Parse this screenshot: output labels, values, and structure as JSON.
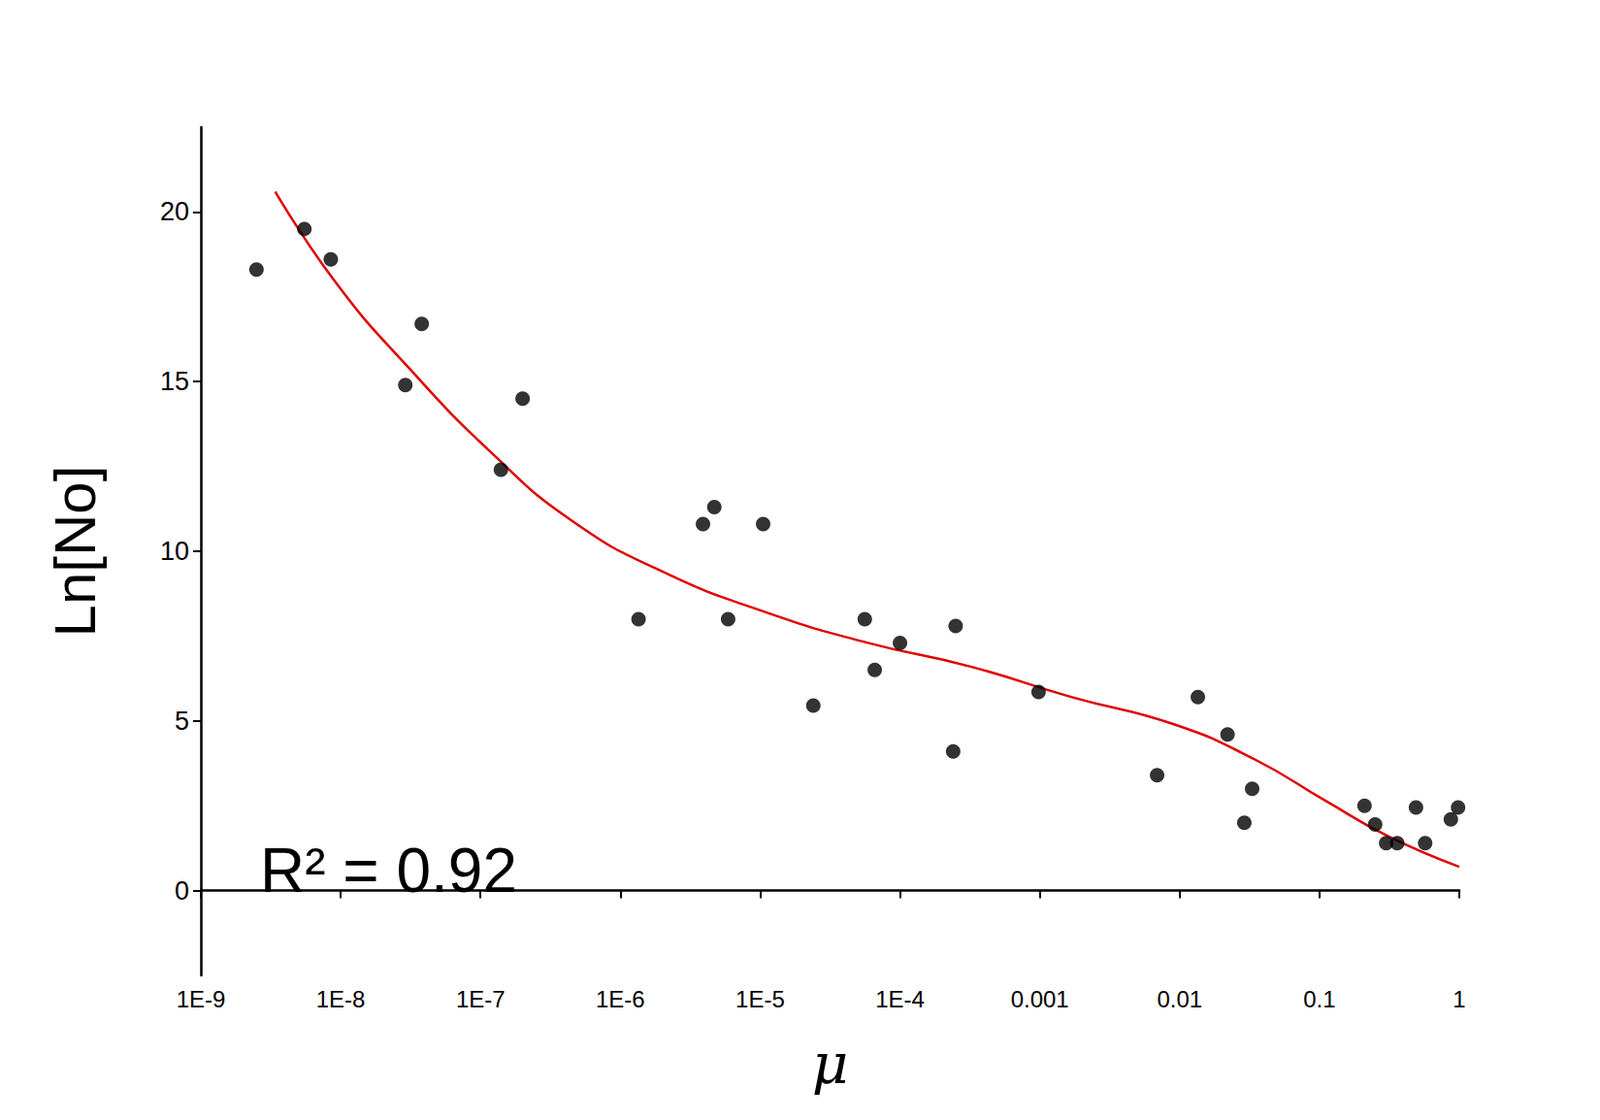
{
  "chart_data": {
    "type": "scatter",
    "xlabel": "μ",
    "ylabel": "Ln[No]",
    "annotation": "R² = 0.92",
    "log": "x",
    "grid": false,
    "xlim": [
      1e-09,
      1
    ],
    "xticks": [
      {
        "value": 1e-09,
        "label": "1E-9"
      },
      {
        "value": 1e-08,
        "label": "1E-8"
      },
      {
        "value": 1e-07,
        "label": "1E-7"
      },
      {
        "value": 1e-06,
        "label": "1E-6"
      },
      {
        "value": 1e-05,
        "label": "1E-5"
      },
      {
        "value": 0.0001,
        "label": "1E-4"
      },
      0.001,
      0.01,
      0.1,
      1
    ],
    "ylim": [
      -2.5,
      22.5
    ],
    "yticks": [
      0,
      5,
      10,
      15,
      20
    ],
    "series": [
      {
        "type": "scatter",
        "color": "#000000",
        "marker": "circle",
        "x": [
          2.5e-09,
          5.5e-09,
          8.5e-09,
          3.8e-08,
          2.9e-08,
          2e-07,
          1.4e-07,
          4.7e-06,
          3.9e-06,
          1.05e-05,
          1.35e-06,
          5.9e-06,
          5.6e-05,
          0.00025,
          0.0001,
          6.6e-05,
          2.4e-05,
          0.00024,
          0.00098,
          0.0069,
          0.0135,
          0.022,
          0.033,
          0.029,
          0.21,
          0.25,
          0.3,
          0.36,
          0.49,
          0.57,
          0.98,
          0.87
        ],
        "values": [
          18.3,
          19.5,
          18.6,
          16.7,
          14.9,
          14.5,
          12.4,
          11.3,
          10.8,
          10.8,
          8.0,
          8.0,
          8.0,
          7.8,
          7.3,
          6.5,
          5.45,
          4.1,
          5.85,
          3.4,
          5.7,
          4.6,
          3.0,
          2.0,
          2.5,
          1.95,
          1.4,
          1.4,
          2.45,
          1.4,
          2.45,
          2.1
        ]
      },
      {
        "type": "line",
        "color": "#e00000",
        "line_style": "solid",
        "x": [
          3.4e-09,
          9.3e-09,
          3e-08,
          1.2e-07,
          4.5e-07,
          2e-06,
          1.1e-05,
          5.9e-05,
          0.00032,
          0.0017,
          0.0091,
          0.035,
          0.11,
          0.31,
          1.0
        ],
        "values": [
          20.6,
          17.9,
          15.45,
          12.9,
          10.9,
          9.4,
          8.2,
          7.3,
          6.6,
          5.7,
          4.9,
          3.85,
          2.65,
          1.6,
          0.7
        ]
      }
    ]
  }
}
